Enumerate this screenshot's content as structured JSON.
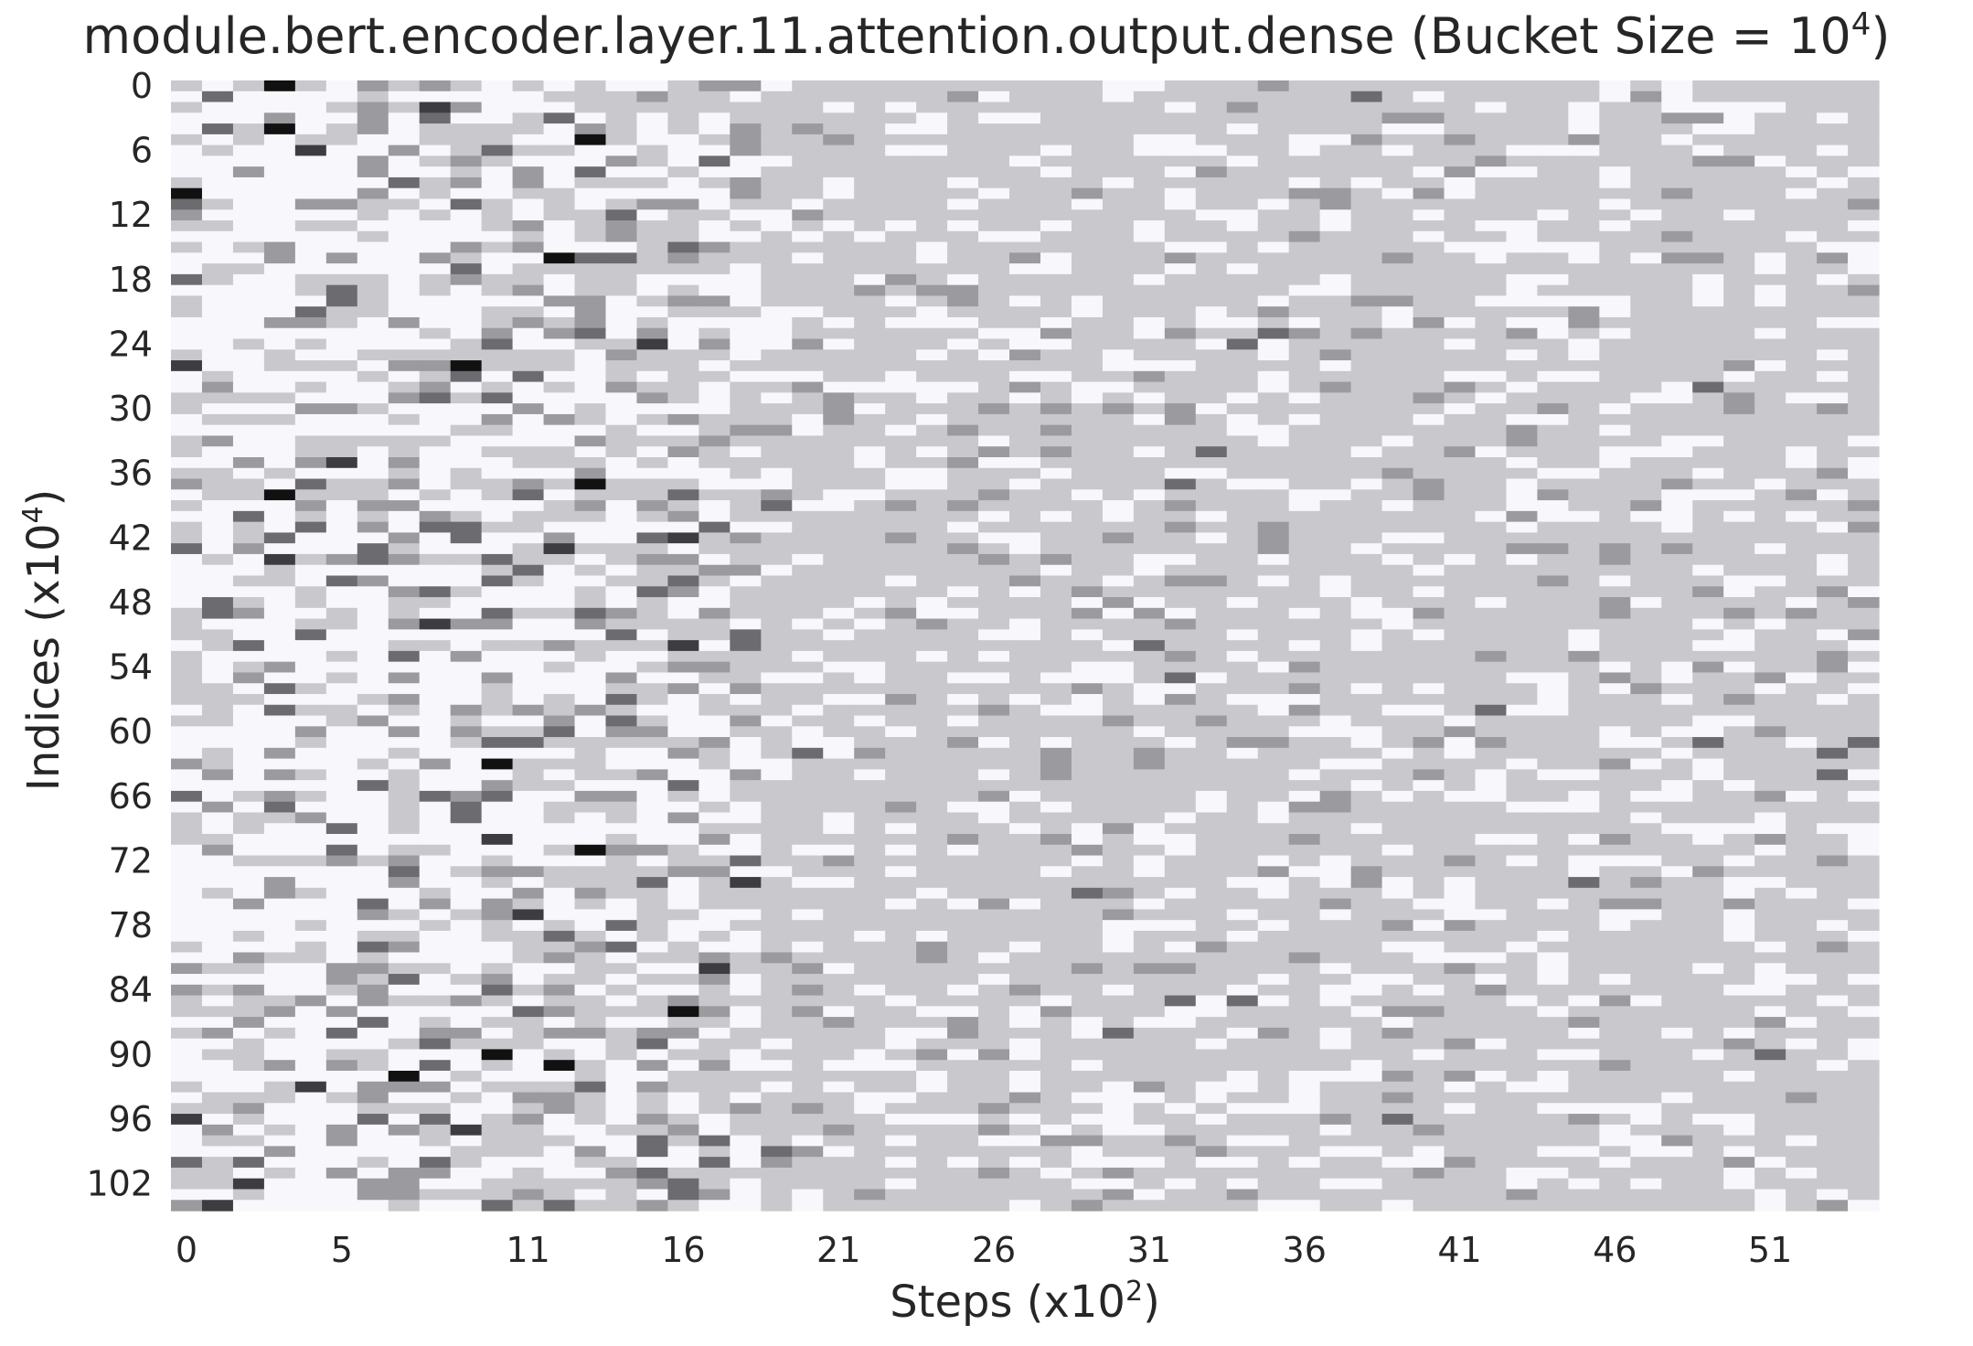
{
  "chart_data": {
    "type": "heatmap",
    "title": "module.bert.encoder.layer.11.attention.output.dense (Bucket Size = 10",
    "title_superscript": "4",
    "title_close": ")",
    "xlabel": "Steps (x10",
    "xlabel_superscript": "2",
    "xlabel_close": ")",
    "ylabel": "Indices (x10",
    "ylabel_superscript": "4",
    "ylabel_close": ")",
    "x_range": [
      0,
      55
    ],
    "y_range": [
      0,
      105
    ],
    "x_ticks": [
      0,
      5,
      11,
      16,
      21,
      26,
      31,
      36,
      41,
      46,
      51
    ],
    "y_ticks": [
      0,
      6,
      12,
      18,
      24,
      30,
      36,
      42,
      48,
      54,
      60,
      66,
      72,
      78,
      84,
      90,
      96,
      102
    ],
    "value_levels": [
      0,
      1,
      2,
      3,
      4,
      5
    ],
    "level_colors": [
      "#f8f8fc",
      "#c9c8cd",
      "#9b9a9e",
      "#6c6b6f",
      "#3d3c40",
      "#111111"
    ],
    "colorbar": false,
    "grid": false,
    "note_pattern": "left columns (steps 0-18) mostly light with sparse dark cells; right columns mostly mid-gray"
  }
}
